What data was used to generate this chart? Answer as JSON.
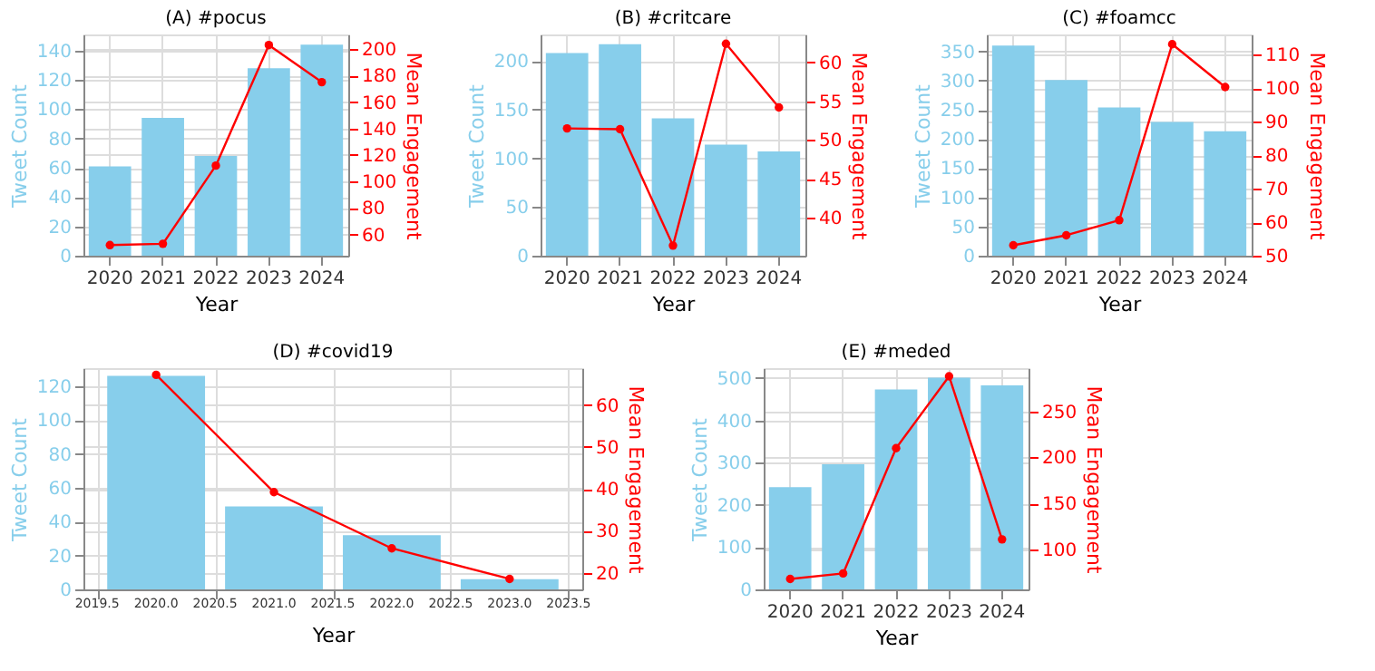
{
  "chart_data": [
    {
      "type": "bar",
      "title": "(A) #pocus",
      "xlabel": "Year",
      "ylabel": "Tweet Count",
      "y2label": "Mean Engagement",
      "categories": [
        "2020",
        "2021",
        "2022",
        "2023",
        "2024"
      ],
      "ylim": [
        0,
        151
      ],
      "yticks": [
        0,
        20,
        40,
        60,
        80,
        100,
        120,
        140
      ],
      "y2lim": [
        44,
        211
      ],
      "y2ticks": [
        60,
        80,
        100,
        120,
        140,
        160,
        180,
        200
      ],
      "grid": true,
      "series": [
        {
          "color": "#87ceeb",
          "values": [
            61,
            94,
            68,
            128,
            144
          ]
        },
        {
          "type": "line",
          "axis": "y2",
          "color": "#ff0000",
          "marker": "circle",
          "values": [
            52,
            53,
            112,
            203,
            175
          ]
        }
      ]
    },
    {
      "type": "bar",
      "title": "(B) #critcare",
      "xlabel": "Year",
      "ylabel": "Tweet Count",
      "y2label": "Mean Engagement",
      "categories": [
        "2020",
        "2021",
        "2022",
        "2023",
        "2024"
      ],
      "ylim": [
        0,
        227
      ],
      "yticks": [
        0,
        50,
        100,
        150,
        200
      ],
      "y2lim": [
        35.1,
        63.6
      ],
      "y2ticks": [
        40,
        45,
        50,
        55,
        60
      ],
      "grid": true,
      "series": [
        {
          "color": "#87ceeb",
          "values": [
            208,
            217,
            141,
            114,
            107
          ]
        },
        {
          "type": "line",
          "axis": "y2",
          "color": "#ff0000",
          "marker": "circle",
          "values": [
            51.5,
            51.4,
            36.4,
            62.4,
            54.2
          ]
        }
      ]
    },
    {
      "type": "bar",
      "title": "(C) #foamcc",
      "xlabel": "Year",
      "ylabel": "Tweet Count",
      "y2label": "Mean Engagement",
      "categories": [
        "2020",
        "2021",
        "2022",
        "2023",
        "2024"
      ],
      "ylim": [
        0,
        379
      ],
      "yticks": [
        0,
        50,
        100,
        150,
        200,
        250,
        300,
        350
      ],
      "y2lim": [
        50,
        116
      ],
      "y2ticks": [
        50,
        60,
        70,
        80,
        90,
        100,
        110
      ],
      "grid": true,
      "series": [
        {
          "color": "#87ceeb",
          "values": [
            360,
            301,
            254,
            229,
            213
          ]
        },
        {
          "type": "line",
          "axis": "y2",
          "color": "#ff0000",
          "marker": "circle",
          "values": [
            53.1,
            56.1,
            60.6,
            113.1,
            100.3
          ]
        }
      ]
    },
    {
      "type": "bar",
      "title": "(D) #covid19",
      "xlabel": "Year",
      "ylabel": "Tweet Count",
      "y2label": "Mean Engagement",
      "x": [
        2020,
        2021,
        2022,
        2023
      ],
      "xlim": [
        2019.46,
        2023.54
      ],
      "xticks": [
        2019.5,
        {
          "value": 2020,
          "label": "2020.0"
        },
        2020.5,
        {
          "value": 2021,
          "label": "2021.0"
        },
        2021.5,
        {
          "value": 2022,
          "label": "2022.0"
        },
        2022.5,
        {
          "value": 2023,
          "label": "2023.0"
        },
        2023.5
      ],
      "ylim": [
        0,
        130.6
      ],
      "yticks": [
        0,
        20,
        40,
        60,
        80,
        100,
        120
      ],
      "y2lim": [
        16,
        68.8
      ],
      "y2ticks": [
        20,
        30,
        40,
        50,
        60
      ],
      "grid": true,
      "series": [
        {
          "color": "#87ceeb",
          "values": [
            126,
            49,
            32,
            6
          ]
        },
        {
          "type": "line",
          "axis": "y2",
          "color": "#ff0000",
          "marker": "circle",
          "values": [
            67.2,
            39.2,
            25.8,
            18.5
          ]
        }
      ]
    },
    {
      "type": "bar",
      "title": "(E) #meded",
      "xlabel": "Year",
      "ylabel": "Tweet Count",
      "y2label": "Mean Engagement",
      "categories": [
        "2020",
        "2021",
        "2022",
        "2023",
        "2024"
      ],
      "ylim": [
        0,
        523.6
      ],
      "yticks": [
        0,
        100,
        200,
        300,
        400,
        500
      ],
      "y2lim": [
        56.7,
        296.8
      ],
      "y2ticks": [
        100,
        150,
        200,
        250
      ],
      "grid": true,
      "series": [
        {
          "color": "#87ceeb",
          "values": [
            242,
            296,
            473,
            501,
            483
          ]
        },
        {
          "type": "line",
          "axis": "y2",
          "color": "#ff0000",
          "marker": "circle",
          "values": [
            68,
            74,
            210,
            288,
            111
          ]
        }
      ]
    }
  ]
}
